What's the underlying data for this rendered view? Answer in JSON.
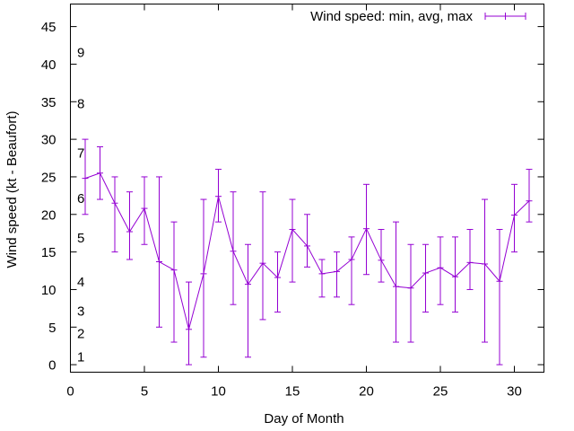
{
  "chart_data": {
    "type": "line",
    "title": "",
    "xlabel": "Day of Month",
    "ylabel": "Wind speed (kt - Beaufort)",
    "xlim": [
      0,
      32
    ],
    "ylim": [
      -1,
      48
    ],
    "xticks": [
      0,
      5,
      10,
      15,
      20,
      25,
      30
    ],
    "yticks": [
      0,
      5,
      10,
      15,
      20,
      25,
      30,
      35,
      40,
      45
    ],
    "grid": false,
    "legend_position": "top-right",
    "series": [
      {
        "name": "Wind speed: min, avg, max",
        "color": "#9400d3",
        "style": "line with min/max error bars",
        "points": [
          {
            "x": 1,
            "avg": 24.8,
            "min": 20,
            "max": 30
          },
          {
            "x": 2,
            "avg": 25.5,
            "min": 22,
            "max": 29
          },
          {
            "x": 3,
            "avg": 21.5,
            "min": 15,
            "max": 25
          },
          {
            "x": 4,
            "avg": 17.7,
            "min": 14,
            "max": 23
          },
          {
            "x": 5,
            "avg": 20.8,
            "min": 16,
            "max": 25
          },
          {
            "x": 6,
            "avg": 13.7,
            "min": 5,
            "max": 25
          },
          {
            "x": 7,
            "avg": 12.6,
            "min": 3,
            "max": 19
          },
          {
            "x": 8,
            "avg": 4.7,
            "min": 0,
            "max": 11
          },
          {
            "x": 9,
            "avg": 12.1,
            "min": 1,
            "max": 22
          },
          {
            "x": 10,
            "avg": 22.4,
            "min": 19,
            "max": 26
          },
          {
            "x": 11,
            "avg": 15.1,
            "min": 8,
            "max": 23
          },
          {
            "x": 12,
            "avg": 10.7,
            "min": 1,
            "max": 16
          },
          {
            "x": 13,
            "avg": 13.5,
            "min": 6,
            "max": 23
          },
          {
            "x": 14,
            "avg": 11.6,
            "min": 7,
            "max": 15
          },
          {
            "x": 15,
            "avg": 18.0,
            "min": 11,
            "max": 22
          },
          {
            "x": 16,
            "avg": 15.8,
            "min": 13,
            "max": 20
          },
          {
            "x": 17,
            "avg": 12.1,
            "min": 9,
            "max": 14
          },
          {
            "x": 18,
            "avg": 12.4,
            "min": 9,
            "max": 15
          },
          {
            "x": 19,
            "avg": 14.0,
            "min": 8,
            "max": 17
          },
          {
            "x": 20,
            "avg": 18.1,
            "min": 12,
            "max": 24
          },
          {
            "x": 21,
            "avg": 13.9,
            "min": 11,
            "max": 18
          },
          {
            "x": 22,
            "avg": 10.4,
            "min": 3,
            "max": 19
          },
          {
            "x": 23,
            "avg": 10.2,
            "min": 3,
            "max": 16
          },
          {
            "x": 24,
            "avg": 12.2,
            "min": 7,
            "max": 16
          },
          {
            "x": 25,
            "avg": 12.9,
            "min": 8,
            "max": 17
          },
          {
            "x": 26,
            "avg": 11.7,
            "min": 7,
            "max": 17
          },
          {
            "x": 27,
            "avg": 13.6,
            "min": 10,
            "max": 18
          },
          {
            "x": 28,
            "avg": 13.4,
            "min": 3,
            "max": 22
          },
          {
            "x": 29,
            "avg": 11.1,
            "min": 0,
            "max": 18
          },
          {
            "x": 30,
            "avg": 19.9,
            "min": 15,
            "max": 24
          },
          {
            "x": 31,
            "avg": 21.8,
            "min": 19,
            "max": 26
          }
        ]
      }
    ],
    "annotations": [
      {
        "text": "1",
        "y": 1.1
      },
      {
        "text": "2",
        "y": 4.2
      },
      {
        "text": "3",
        "y": 7.2
      },
      {
        "text": "4",
        "y": 11.1
      },
      {
        "text": "5",
        "y": 16.9
      },
      {
        "text": "6",
        "y": 22.2
      },
      {
        "text": "7",
        "y": 28.2
      },
      {
        "text": "8",
        "y": 34.8
      },
      {
        "text": "9",
        "y": 41.6
      }
    ]
  }
}
